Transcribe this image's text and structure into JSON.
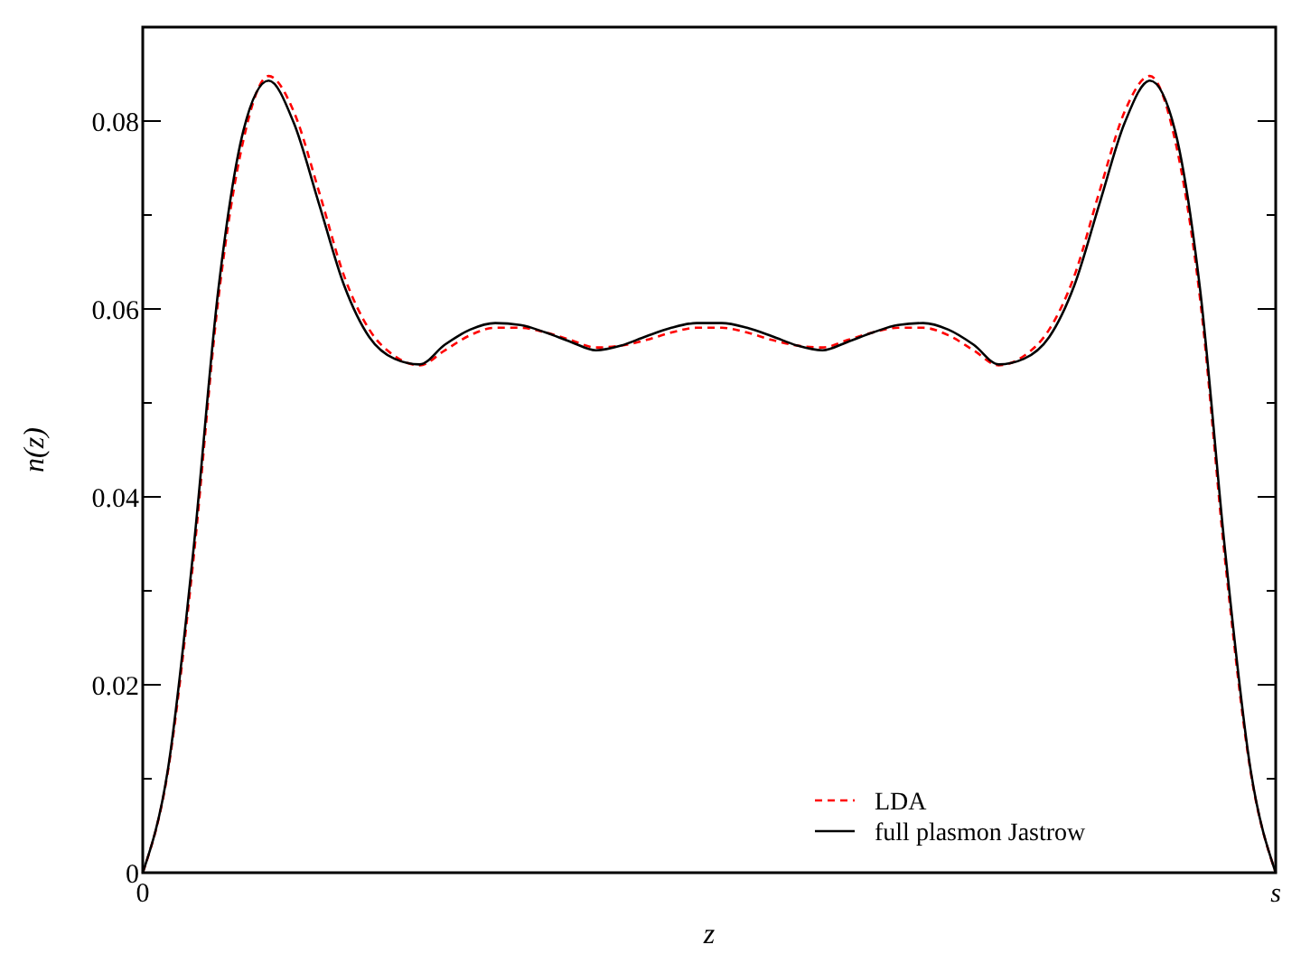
{
  "chart_data": {
    "type": "line",
    "xlabel": "z",
    "ylabel": "n(z)",
    "ylim": [
      0,
      0.09
    ],
    "yticks": [
      0,
      {
        "value": 0.01,
        "label": null
      },
      0.02,
      {
        "value": 0.03,
        "label": null
      },
      0.04,
      {
        "value": 0.05,
        "label": null
      },
      0.06,
      {
        "value": 0.07,
        "label": null
      },
      0.08
    ],
    "legend": "bottom right",
    "grid": false,
    "categories": [
      "0",
      null,
      null,
      null,
      null,
      null,
      null,
      null,
      null,
      null,
      null,
      null,
      null,
      null,
      null,
      null,
      null,
      null,
      null,
      null,
      null,
      null,
      null,
      null,
      null,
      null,
      null,
      null,
      null,
      null,
      null,
      null,
      null,
      null,
      null,
      null,
      null,
      null,
      null,
      null,
      null,
      null,
      null,
      null,
      null,
      "s"
    ],
    "series": [
      {
        "name": "LDA",
        "color": "#ff0000",
        "line_style": "dashed",
        "values": [
          0,
          0.0108,
          0.033,
          0.061,
          0.078,
          0.0848,
          0.081,
          0.0725,
          0.0635,
          0.0578,
          0.055,
          0.054,
          0.0556,
          0.0572,
          0.058,
          0.058,
          0.0575,
          0.0567,
          0.0559,
          0.0561,
          0.0567,
          0.0575,
          0.058,
          0.058,
          0.0575,
          0.0567,
          0.0561,
          0.0559,
          0.0567,
          0.0575,
          0.058,
          0.058,
          0.0572,
          0.0556,
          0.054,
          0.055,
          0.0578,
          0.0635,
          0.0725,
          0.081,
          0.0848,
          0.078,
          0.061,
          0.033,
          0.0108,
          0
        ]
      },
      {
        "name": "full plasmon Jastrow",
        "color": "#000000",
        "line_style": "solid",
        "values": [
          0,
          0.011,
          0.034,
          0.062,
          0.079,
          0.0843,
          0.0798,
          0.0712,
          0.0625,
          0.057,
          0.0547,
          0.0541,
          0.0562,
          0.0578,
          0.0585,
          0.0583,
          0.0575,
          0.0565,
          0.0556,
          0.0561,
          0.0571,
          0.058,
          0.0585,
          0.0585,
          0.058,
          0.0571,
          0.0561,
          0.0556,
          0.0565,
          0.0575,
          0.0583,
          0.0585,
          0.0578,
          0.0562,
          0.0541,
          0.0547,
          0.057,
          0.0625,
          0.0712,
          0.0798,
          0.0843,
          0.079,
          0.062,
          0.034,
          0.011,
          0
        ]
      }
    ]
  }
}
